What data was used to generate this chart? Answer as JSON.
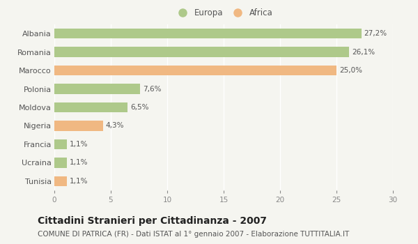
{
  "categories": [
    "Albania",
    "Romania",
    "Marocco",
    "Polonia",
    "Moldova",
    "Nigeria",
    "Francia",
    "Ucraina",
    "Tunisia"
  ],
  "values": [
    27.2,
    26.1,
    25.0,
    7.6,
    6.5,
    4.3,
    1.1,
    1.1,
    1.1
  ],
  "labels": [
    "27,2%",
    "26,1%",
    "25,0%",
    "7,6%",
    "6,5%",
    "4,3%",
    "1,1%",
    "1,1%",
    "1,1%"
  ],
  "colors": [
    "#aec98a",
    "#aec98a",
    "#f0b882",
    "#aec98a",
    "#aec98a",
    "#f0b882",
    "#aec98a",
    "#aec98a",
    "#f0b882"
  ],
  "europa_color": "#aec98a",
  "africa_color": "#f0b882",
  "xlim": [
    0,
    30
  ],
  "xticks": [
    0,
    5,
    10,
    15,
    20,
    25,
    30
  ],
  "title": "Cittadini Stranieri per Cittadinanza - 2007",
  "subtitle": "COMUNE DI PATRICA (FR) - Dati ISTAT al 1° gennaio 2007 - Elaborazione TUTTITALIA.IT",
  "bg_color": "#f5f5f0",
  "grid_color": "#ffffff",
  "title_fontsize": 10,
  "subtitle_fontsize": 7.5,
  "label_fontsize": 7.5,
  "tick_fontsize": 7.5,
  "legend_fontsize": 8.5,
  "ytick_fontsize": 8
}
